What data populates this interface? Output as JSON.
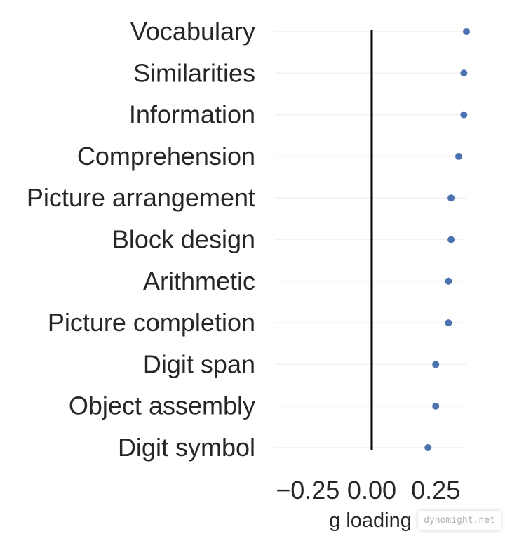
{
  "chart_data": {
    "type": "scatter",
    "title": "",
    "xlabel": "g loading",
    "ylabel": "",
    "xlim": [
      -0.4,
      0.37
    ],
    "xticks": [
      -0.25,
      0.0,
      0.25
    ],
    "xtick_labels": [
      "−0.25",
      "0.00",
      "0.25"
    ],
    "reference_line_x": 0.0,
    "grid": "horizontal",
    "point_color": "#4c72b0",
    "categories": [
      "Vocabulary",
      "Similarities",
      "Information",
      "Comprehension",
      "Picture arrangement",
      "Block design",
      "Arithmetic",
      "Picture completion",
      "Digit span",
      "Object assembly",
      "Digit symbol"
    ],
    "values": [
      0.37,
      0.36,
      0.36,
      0.34,
      0.31,
      0.31,
      0.3,
      0.3,
      0.25,
      0.25,
      0.22
    ]
  },
  "watermark": "dynomight.net"
}
